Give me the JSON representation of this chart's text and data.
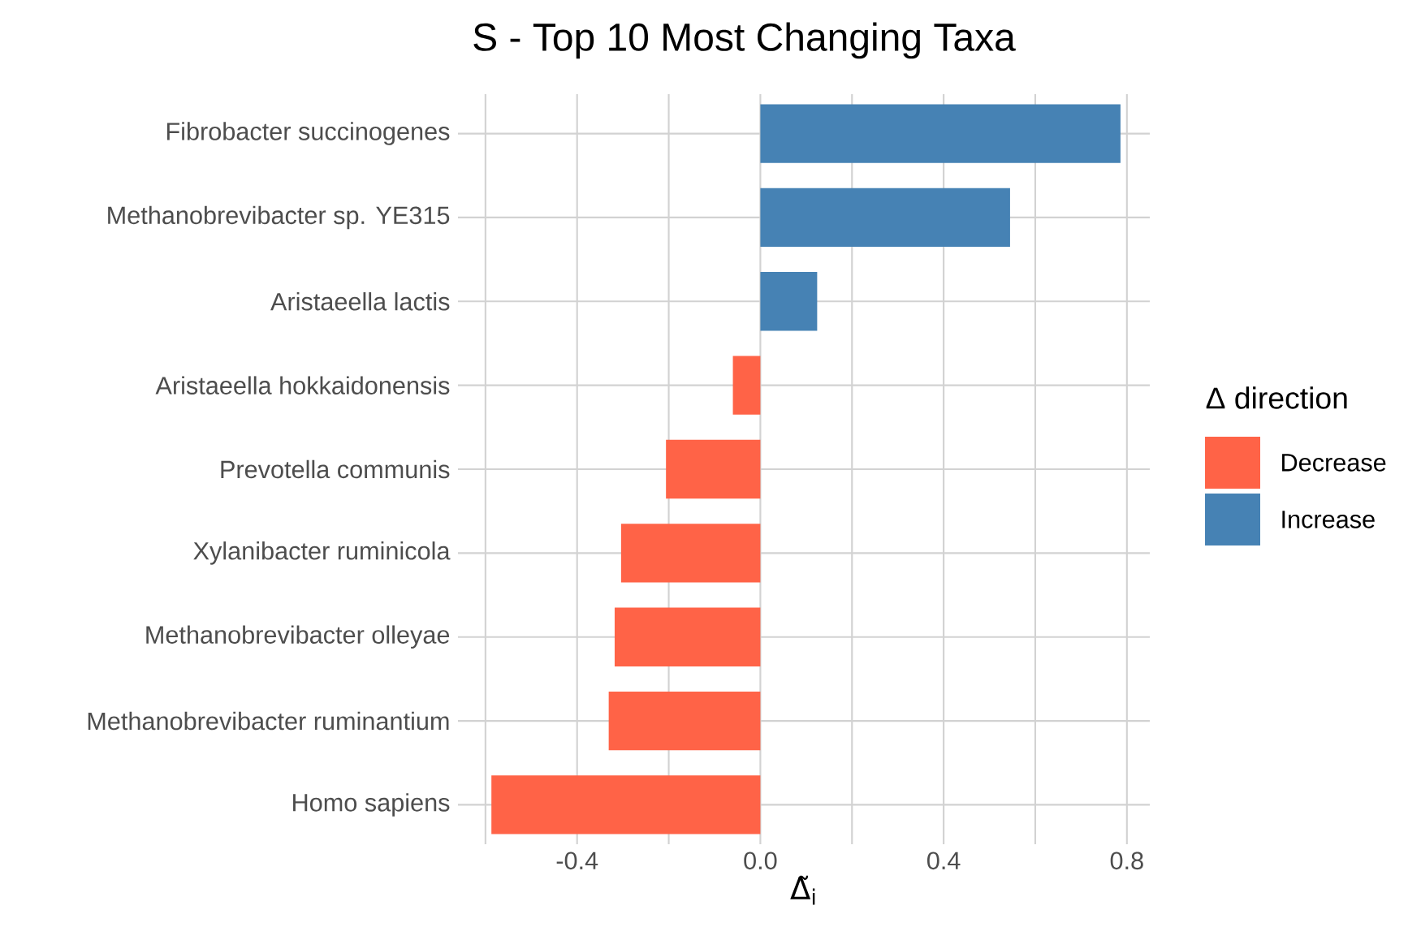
{
  "chart_data": {
    "type": "bar",
    "orientation": "horizontal",
    "title": "S - Top 10 Most Changing Taxa",
    "xlabel": "Δ̃$_{i}$",
    "legend_title": "Δ direction",
    "categories": [
      "Fibrobacter succinogenes",
      "Methanobrevibacter sp. YE315",
      "Aristaeella lactis",
      "Aristaeella hokkaidonensis",
      "Prevotella communis",
      "Xylanibacter ruminicola",
      "Methanobrevibacter olleyae",
      "Methanobrevibacter ruminantium",
      "Homo sapiens"
    ],
    "series": [
      {
        "name": "Decrease",
        "color": "#ff6347",
        "values": [
          null,
          null,
          null,
          -0.06,
          -0.206,
          -0.304,
          -0.318,
          -0.331,
          -0.587
        ]
      },
      {
        "name": "Increase",
        "color": "#4682b4",
        "values": [
          0.786,
          0.545,
          0.124,
          null,
          null,
          null,
          null,
          null,
          null
        ]
      }
    ],
    "xlim": [
      -0.66,
      0.85
    ],
    "xticks": [
      {
        "value": -0.6,
        "label": null
      },
      -0.4,
      {
        "value": -0.2,
        "label": null
      },
      {
        "value": 0,
        "label": "0.0"
      },
      {
        "value": 0.2,
        "label": null
      },
      0.4,
      {
        "value": 0.6,
        "label": null
      },
      0.8
    ],
    "grid": true,
    "legend": "right"
  }
}
